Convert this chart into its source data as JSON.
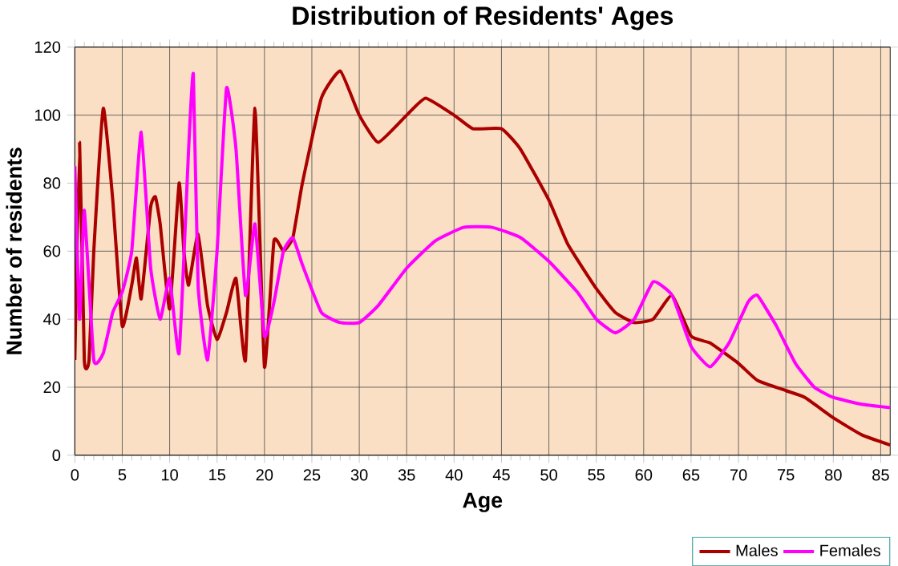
{
  "chart_data": {
    "type": "line",
    "title": "Distribution of Residents' Ages",
    "xlabel": "Age",
    "ylabel": "Number of residents",
    "xlim": [
      0,
      86
    ],
    "ylim": [
      0,
      120
    ],
    "xticks": [
      0,
      5,
      10,
      15,
      20,
      25,
      30,
      35,
      40,
      45,
      50,
      55,
      60,
      65,
      70,
      75,
      80,
      85
    ],
    "yticks": [
      0,
      20,
      40,
      60,
      80,
      100,
      120
    ],
    "grid": true,
    "legend": "bottom right",
    "series": [
      {
        "name": "Males",
        "color": "#aa0000",
        "x": [
          0,
          0.5,
          1,
          1.5,
          2,
          3,
          4,
          5,
          6,
          6.5,
          7,
          8,
          8.5,
          9,
          10,
          11,
          11.5,
          12,
          13,
          14,
          15,
          16,
          17,
          18,
          19,
          20,
          21,
          22,
          23,
          24,
          26,
          28,
          30,
          32,
          35,
          37,
          40,
          42,
          45,
          47,
          50,
          52,
          55,
          57,
          59,
          61,
          63,
          65,
          67,
          70,
          72,
          75,
          77,
          80,
          83,
          86
        ],
        "values": [
          28,
          92,
          28,
          28,
          60,
          102,
          75,
          38,
          50,
          58,
          46,
          73,
          76,
          68,
          43,
          80,
          60,
          50,
          65,
          44,
          34,
          42,
          52,
          28,
          102,
          26,
          63,
          60,
          64,
          80,
          105,
          113,
          100,
          92,
          100,
          105,
          100,
          96,
          96,
          90,
          75,
          62,
          49,
          42,
          39,
          40,
          47,
          35,
          33,
          27,
          22,
          19,
          17,
          11,
          6,
          3
        ]
      },
      {
        "name": "Females",
        "color": "#ff00ff",
        "x": [
          0,
          0.5,
          1,
          2,
          3,
          4,
          5,
          6,
          7,
          8,
          9,
          10,
          11,
          12,
          12.5,
          13,
          14,
          15,
          16,
          17,
          18,
          19,
          20,
          21,
          22,
          23,
          24,
          26,
          28,
          30,
          32,
          35,
          38,
          41,
          44,
          47,
          50,
          53,
          55,
          57,
          59,
          61,
          63,
          65,
          67,
          69,
          71,
          72,
          74,
          76,
          78,
          80,
          83,
          86
        ],
        "values": [
          85,
          40,
          72,
          28,
          30,
          42,
          48,
          60,
          95,
          55,
          40,
          52,
          30,
          90,
          112,
          50,
          28,
          60,
          108,
          90,
          47,
          68,
          35,
          45,
          60,
          64,
          56,
          42,
          39,
          39,
          44,
          55,
          63,
          67,
          67,
          64,
          57,
          48,
          40,
          36,
          40,
          51,
          47,
          32,
          26,
          33,
          45,
          47,
          38,
          27,
          20,
          17,
          15,
          14
        ]
      }
    ]
  }
}
